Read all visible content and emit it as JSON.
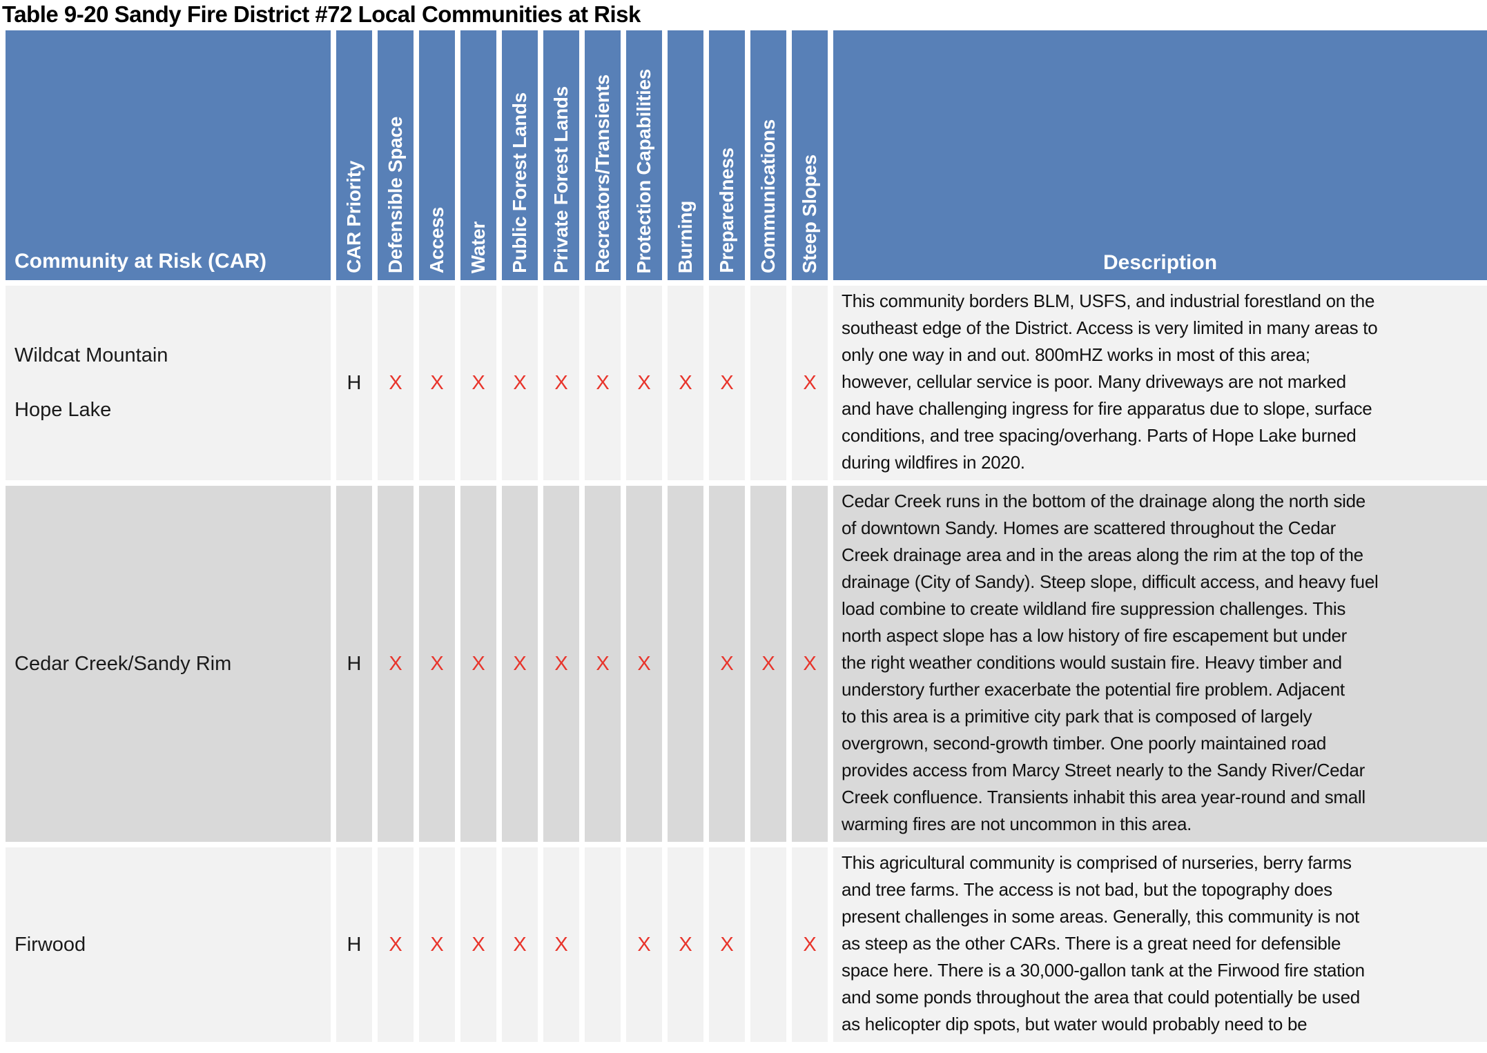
{
  "title": "Table 9-20 Sandy Fire District #72 Local Communities at Risk",
  "colors": {
    "header_bg": "#5880B7",
    "header_text": "#FFFFFF",
    "row_light": "#F2F2F2",
    "row_dark": "#D9D9D9",
    "x_mark": "#E8342B",
    "body_text": "#1A1A1A"
  },
  "columns": {
    "community": "Community at Risk (CAR)",
    "priority": "CAR Priority",
    "attributes": [
      "Defensible Space",
      "Access",
      "Water",
      "Public Forest Lands",
      "Private Forest Lands",
      "Recreators/Transients",
      "Protection Capabilities",
      "Burning",
      "Preparedness",
      "Communications",
      "Steep Slopes"
    ],
    "description": "Description"
  },
  "rows": [
    {
      "community_lines": [
        "Wildcat Mountain",
        "Hope Lake"
      ],
      "priority": "H",
      "marks": [
        "X",
        "X",
        "X",
        "X",
        "X",
        "X",
        "X",
        "X",
        "X",
        "",
        "X"
      ],
      "description_lines": [
        "This community borders BLM, USFS, and industrial forestland on the",
        "southeast edge of the District. Access is very limited in many areas to",
        "only one way in and out. 800mHZ works in most of this area;",
        "however, cellular service is poor. Many driveways are not marked",
        "and have challenging ingress for fire apparatus due to slope, surface",
        "conditions, and tree spacing/overhang. Parts of Hope Lake burned",
        "during wildfires in 2020."
      ]
    },
    {
      "community_lines": [
        "Cedar Creek/Sandy Rim"
      ],
      "priority": "H",
      "marks": [
        "X",
        "X",
        "X",
        "X",
        "X",
        "X",
        "X",
        "",
        "X",
        "X",
        "X"
      ],
      "description_lines": [
        "Cedar Creek runs in the bottom of the drainage along the north side",
        "of downtown Sandy. Homes are scattered throughout the Cedar",
        "Creek drainage area and in the areas along the rim at the top of the",
        "drainage (City of Sandy). Steep slope, difficult access, and heavy fuel",
        "load combine to create wildland fire suppression challenges. This",
        "north aspect slope has a low history of fire escapement but under",
        "the right weather conditions would sustain fire. Heavy timber and",
        "understory further exacerbate the potential fire problem. Adjacent",
        "to this area is a primitive city park that is composed of largely",
        "overgrown, second-growth timber. One poorly maintained road",
        "provides access from Marcy Street nearly to the Sandy River/Cedar",
        "Creek confluence. Transients inhabit this area year-round and small",
        "warming fires are not uncommon in this area."
      ]
    },
    {
      "community_lines": [
        "Firwood"
      ],
      "priority": "H",
      "marks": [
        "X",
        "X",
        "X",
        "X",
        "X",
        "",
        "X",
        "X",
        "X",
        "",
        "X"
      ],
      "description_lines": [
        "This agricultural community is comprised of nurseries, berry farms",
        "and tree farms. The access is not bad, but the topography does",
        "present challenges in some areas. Generally, this community is not",
        "as steep as the other CARs. There is a great need for defensible",
        "space here. There is a 30,000-gallon tank at the Firwood fire station",
        "and some ponds throughout the area that could potentially be used",
        "as helicopter dip spots, but water would probably need to be"
      ]
    }
  ]
}
